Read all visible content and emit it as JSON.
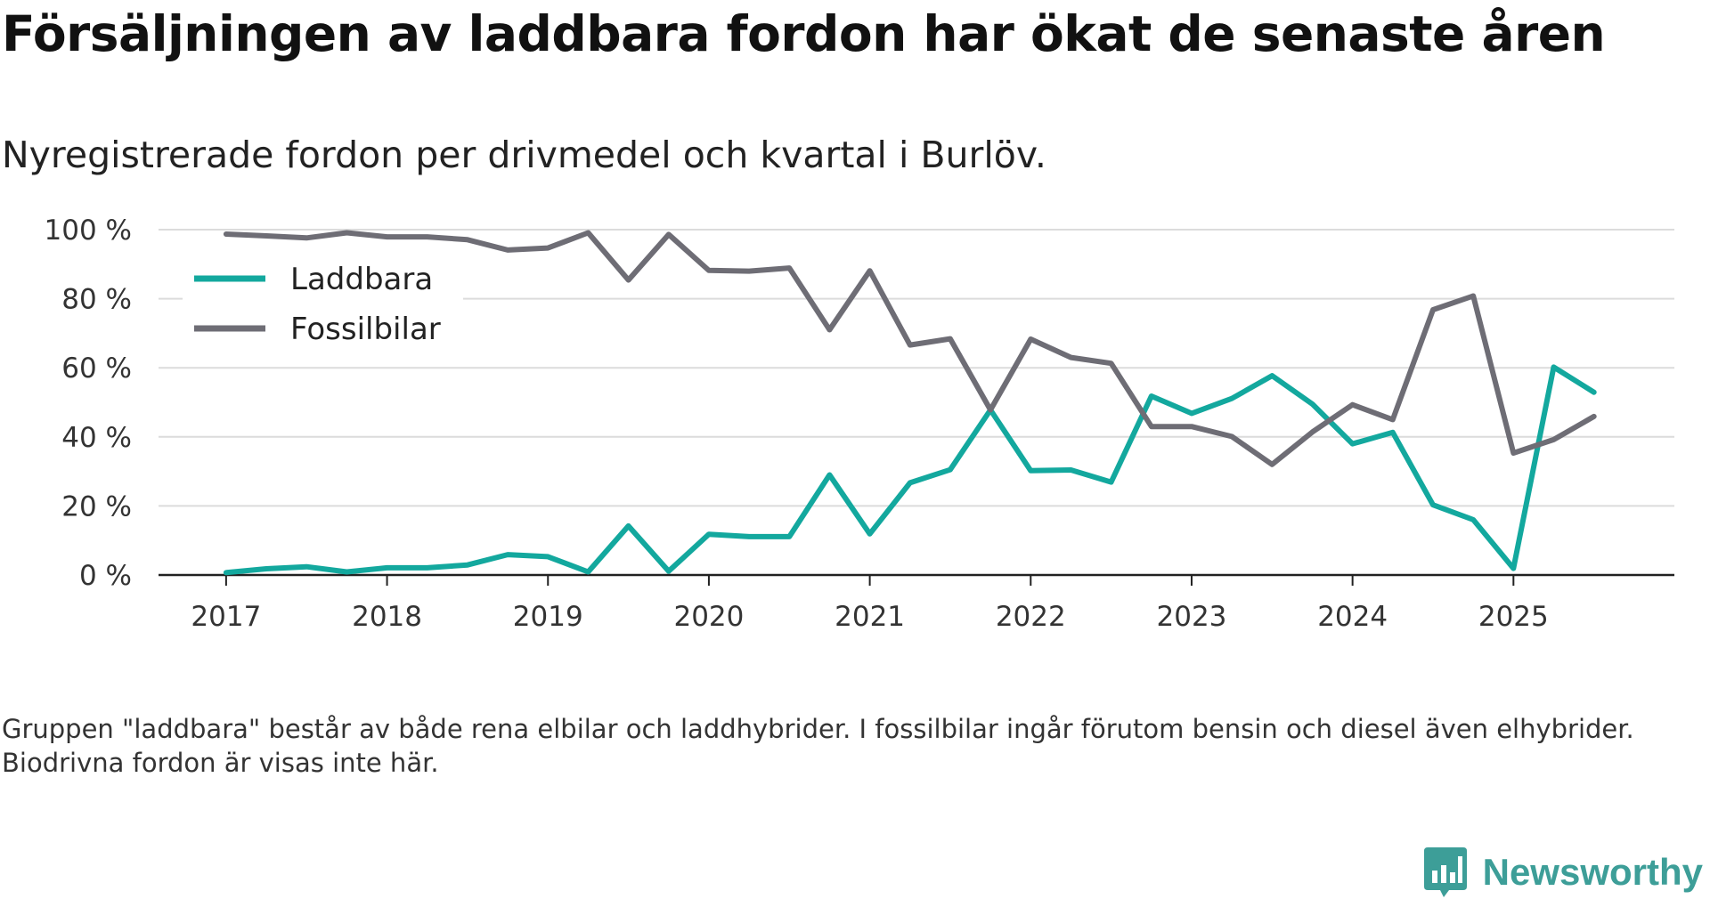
{
  "title": "Försäljningen av laddbara fordon har ökat de senaste åren",
  "subtitle": "Nyregistrerade fordon per drivmedel och kvartal i Burlöv.",
  "note": "Gruppen \"laddbara\" består av både rena elbilar och laddhybrider. I fossilbilar ingår förutom bensin och diesel även elhybrider. Biodrivna fordon är visas inte här.",
  "brand": {
    "name": "Newsworthy",
    "icon": "newsworthy-logo-icon",
    "color": "#3d9e98"
  },
  "chart_data": {
    "type": "line",
    "title": "Nyregistrerade fordon per drivmedel och kvartal i Burlöv.",
    "xlabel": "",
    "ylabel": "",
    "ylim": [
      0,
      100
    ],
    "yticks": [
      0,
      20,
      40,
      60,
      80,
      100
    ],
    "ytick_labels": [
      "0 %",
      "20 %",
      "40 %",
      "60 %",
      "80 %",
      "100 %"
    ],
    "xticks": [
      2017,
      2018,
      2019,
      2020,
      2021,
      2022,
      2023,
      2024,
      2025
    ],
    "xtick_labels": [
      "2017",
      "2018",
      "2019",
      "2020",
      "2021",
      "2022",
      "2023",
      "2024",
      "2025"
    ],
    "grid": true,
    "legend_position": "top-left",
    "x": [
      2017.0,
      2017.25,
      2017.5,
      2017.75,
      2018.0,
      2018.25,
      2018.5,
      2018.75,
      2019.0,
      2019.25,
      2019.5,
      2019.75,
      2020.0,
      2020.25,
      2020.5,
      2020.75,
      2021.0,
      2021.25,
      2021.5,
      2021.75,
      2022.0,
      2022.25,
      2022.5,
      2022.75,
      2023.0,
      2023.25,
      2023.5,
      2023.75,
      2024.0,
      2024.25,
      2024.5,
      2024.75,
      2025.0,
      2025.25,
      2025.5
    ],
    "series": [
      {
        "name": "Laddbara",
        "color": "#13a89e",
        "values": [
          0.7,
          1.8,
          2.4,
          0.9,
          2.1,
          2.1,
          2.9,
          5.9,
          5.3,
          0.9,
          14.2,
          1.1,
          11.8,
          11.1,
          11.1,
          29.0,
          11.9,
          26.7,
          30.5,
          47.8,
          30.2,
          30.4,
          26.9,
          51.8,
          46.8,
          51.1,
          57.7,
          49.5,
          38.0,
          41.3,
          20.3,
          16.0,
          1.9,
          60.2,
          52.9
        ]
      },
      {
        "name": "Fossilbilar",
        "color": "#6e6d75",
        "values": [
          98.7,
          98.2,
          97.6,
          99.1,
          97.9,
          97.9,
          97.1,
          94.1,
          94.7,
          99.1,
          85.4,
          98.6,
          88.2,
          88.0,
          88.9,
          71.0,
          88.1,
          66.6,
          68.4,
          47.8,
          68.3,
          63.0,
          61.3,
          43.0,
          43.0,
          40.1,
          32.0,
          41.4,
          49.3,
          45.0,
          76.8,
          80.8,
          35.3,
          39.2,
          45.9
        ]
      }
    ]
  }
}
